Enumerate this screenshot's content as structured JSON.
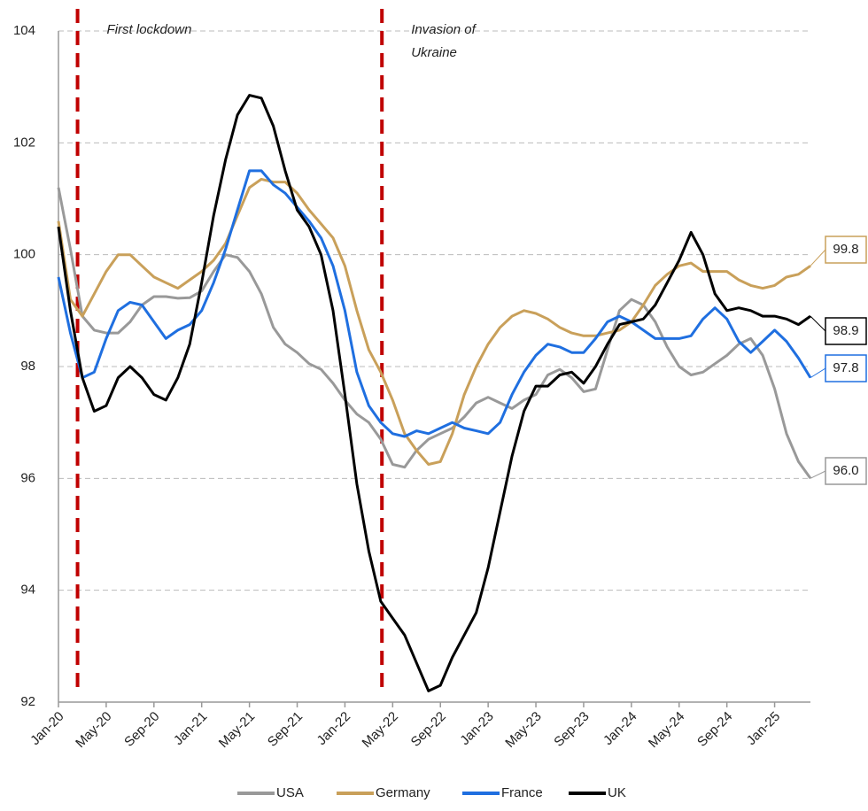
{
  "chart_data": {
    "type": "line",
    "categories": [
      "Jan-20",
      null,
      null,
      null,
      "May-20",
      null,
      null,
      null,
      "Sep-20",
      null,
      null,
      null,
      "Jan-21",
      null,
      null,
      null,
      "May-21",
      null,
      null,
      null,
      "Sep-21",
      null,
      null,
      null,
      "Jan-22",
      null,
      null,
      null,
      "May-22",
      null,
      null,
      null,
      "Sep-22",
      null,
      null,
      null,
      "Jan-23",
      null,
      null,
      null,
      "May-23",
      null,
      null,
      null,
      "Sep-23",
      null,
      null,
      null,
      "Jan-24",
      null,
      null,
      null,
      "May-24",
      null,
      null,
      null,
      "Sep-24",
      null,
      null,
      null,
      "Jan-25",
      null,
      null,
      null
    ],
    "ylim": [
      92,
      104
    ],
    "yticks": [
      92,
      94,
      96,
      98,
      100,
      102,
      104
    ],
    "grid": true,
    "series": [
      {
        "name": "USA",
        "color": "#999999",
        "end_label": "96.0",
        "values": [
          101.2,
          100.1,
          98.9,
          98.65,
          98.6,
          98.6,
          98.8,
          99.1,
          99.25,
          99.25,
          99.22,
          99.23,
          99.35,
          99.7,
          100.0,
          99.95,
          99.7,
          99.3,
          98.7,
          98.4,
          98.25,
          98.05,
          97.95,
          97.7,
          97.4,
          97.15,
          97.0,
          96.7,
          96.25,
          96.2,
          96.5,
          96.7,
          96.8,
          96.9,
          97.1,
          97.35,
          97.45,
          97.35,
          97.25,
          97.4,
          97.5,
          97.85,
          97.95,
          97.8,
          97.55,
          97.6,
          98.3,
          99.0,
          99.2,
          99.1,
          98.8,
          98.35,
          98.0,
          97.85,
          97.9,
          98.05,
          98.2,
          98.4,
          98.5,
          98.2,
          97.6,
          96.8,
          96.3,
          96.0
        ]
      },
      {
        "name": "Germany",
        "color": "#c9a05a",
        "end_label": "99.8",
        "values": [
          100.6,
          99.2,
          98.9,
          99.3,
          99.7,
          100.0,
          100.0,
          99.8,
          99.6,
          99.5,
          99.4,
          99.55,
          99.7,
          99.9,
          100.2,
          100.7,
          101.2,
          101.35,
          101.3,
          101.3,
          101.1,
          100.8,
          100.55,
          100.3,
          99.8,
          99.0,
          98.3,
          97.9,
          97.4,
          96.8,
          96.5,
          96.25,
          96.3,
          96.8,
          97.5,
          98.0,
          98.4,
          98.7,
          98.9,
          99.0,
          98.95,
          98.85,
          98.7,
          98.6,
          98.55,
          98.55,
          98.6,
          98.65,
          98.8,
          99.1,
          99.45,
          99.65,
          99.8,
          99.85,
          99.7,
          99.7,
          99.7,
          99.55,
          99.45,
          99.4,
          99.45,
          99.6,
          99.65,
          99.8
        ]
      },
      {
        "name": "France",
        "color": "#1f6fe0",
        "end_label": "97.8",
        "values": [
          99.6,
          98.6,
          97.8,
          97.9,
          98.5,
          99.0,
          99.15,
          99.1,
          98.8,
          98.5,
          98.65,
          98.75,
          99.0,
          99.5,
          100.1,
          100.8,
          101.5,
          101.5,
          101.25,
          101.1,
          100.85,
          100.6,
          100.3,
          99.8,
          99.0,
          97.9,
          97.3,
          97.0,
          96.8,
          96.75,
          96.85,
          96.8,
          96.9,
          97.0,
          96.9,
          96.85,
          96.8,
          97.0,
          97.5,
          97.9,
          98.2,
          98.4,
          98.35,
          98.25,
          98.25,
          98.5,
          98.8,
          98.9,
          98.8,
          98.65,
          98.5,
          98.5,
          98.5,
          98.55,
          98.85,
          99.05,
          98.85,
          98.45,
          98.25,
          98.45,
          98.65,
          98.45,
          98.15,
          97.8
        ]
      },
      {
        "name": "UK",
        "color": "#000000",
        "end_label": "98.9",
        "values": [
          100.5,
          99.0,
          97.8,
          97.2,
          97.3,
          97.8,
          98.0,
          97.8,
          97.5,
          97.4,
          97.8,
          98.4,
          99.5,
          100.7,
          101.7,
          102.5,
          102.85,
          102.8,
          102.3,
          101.5,
          100.8,
          100.5,
          100.0,
          99.0,
          97.5,
          95.9,
          94.7,
          93.8,
          93.5,
          93.2,
          92.7,
          92.2,
          92.3,
          92.8,
          93.2,
          93.6,
          94.4,
          95.4,
          96.4,
          97.2,
          97.65,
          97.65,
          97.85,
          97.9,
          97.7,
          98.0,
          98.4,
          98.75,
          98.8,
          98.85,
          99.1,
          99.5,
          99.9,
          100.4,
          100.0,
          99.3,
          99.0,
          99.05,
          99.0,
          98.9,
          98.9,
          98.85,
          98.75,
          98.9
        ]
      }
    ],
    "annotations": [
      {
        "lines": [
          "First lockdown"
        ],
        "x": 1.6,
        "color": "#c00000"
      },
      {
        "lines": [
          "Invasion of",
          "Ukraine"
        ],
        "x": 27.1,
        "color": "#c00000"
      }
    ]
  }
}
